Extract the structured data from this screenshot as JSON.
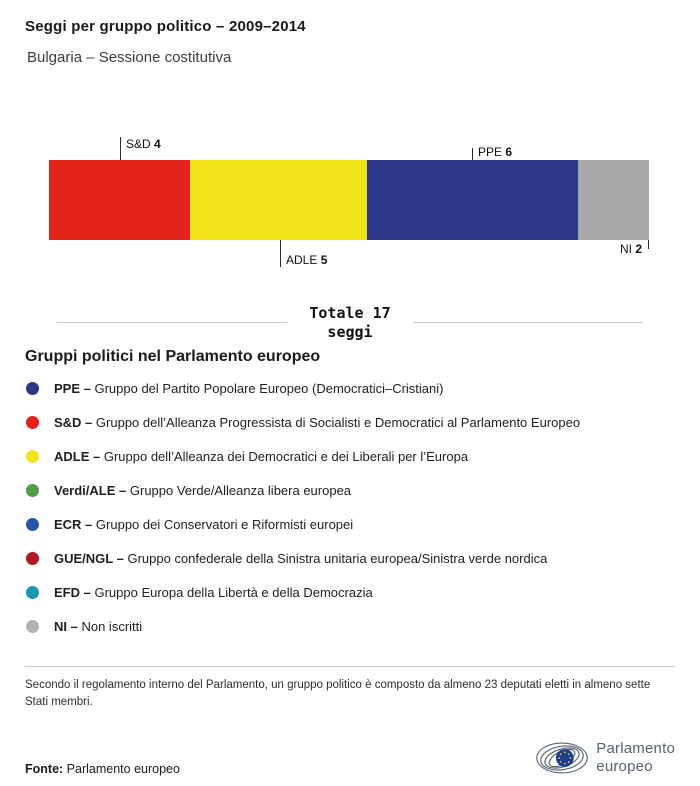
{
  "header": {
    "title": "Seggi per gruppo politico – 2009–2014",
    "subtitle": "Bulgaria – Sessione costitutiva"
  },
  "chart_data": {
    "type": "bar",
    "stacked": true,
    "orientation": "horizontal",
    "title": "Seggi per gruppo politico – 2009–2014",
    "subtitle": "Bulgaria – Sessione costitutiva",
    "categories": [
      "S&D",
      "ADLE",
      "PPE",
      "NI"
    ],
    "values": [
      4,
      5,
      6,
      2
    ],
    "colors": [
      "#e32219",
      "#f0e317",
      "#2c3789",
      "#a9a9a9"
    ],
    "total": 17
  },
  "total": {
    "line1": "Totale 17",
    "line2": "seggi"
  },
  "legend": {
    "title": "Gruppi politici nel Parlamento europeo",
    "items": [
      {
        "abbr": "PPE –",
        "desc": "Gruppo del Partito Popolare Europeo (Democratici–Cristiani)",
        "color": "#2c3789"
      },
      {
        "abbr": "S&D –",
        "desc": "Gruppo dell’Alleanza Progressista di Socialisti e Democratici al Parlamento Europeo",
        "color": "#e32219"
      },
      {
        "abbr": "ADLE –",
        "desc": "Gruppo dell’Alleanza dei Democratici e dei Liberali per l’Europa",
        "color": "#f0e317"
      },
      {
        "abbr": "Verdi/ALE –",
        "desc": "Gruppo Verde/Alleanza libera europea",
        "color": "#4f9e45"
      },
      {
        "abbr": "ECR –",
        "desc": "Gruppo dei Conservatori e Riformisti europei",
        "color": "#2953a4"
      },
      {
        "abbr": "GUE/NGL –",
        "desc": "Gruppo confederale della Sinistra unitaria europea/Sinistra verde nordica",
        "color": "#b0191f"
      },
      {
        "abbr": "EFD –",
        "desc": "Gruppo Europa della Libertà e della Democrazia",
        "color": "#1499ae"
      },
      {
        "abbr": "NI –",
        "desc": "Non iscritti",
        "color": "#b3b3b3"
      }
    ]
  },
  "footnote": "Secondo il regolamento interno del Parlamento, un gruppo politico è composto da almeno 23 deputati eletti in almeno sette Stati membri.",
  "source": {
    "label": "Fonte:",
    "value": "Parlamento europeo"
  },
  "logo": {
    "line1": "Parlamento",
    "line2": "europeo"
  }
}
